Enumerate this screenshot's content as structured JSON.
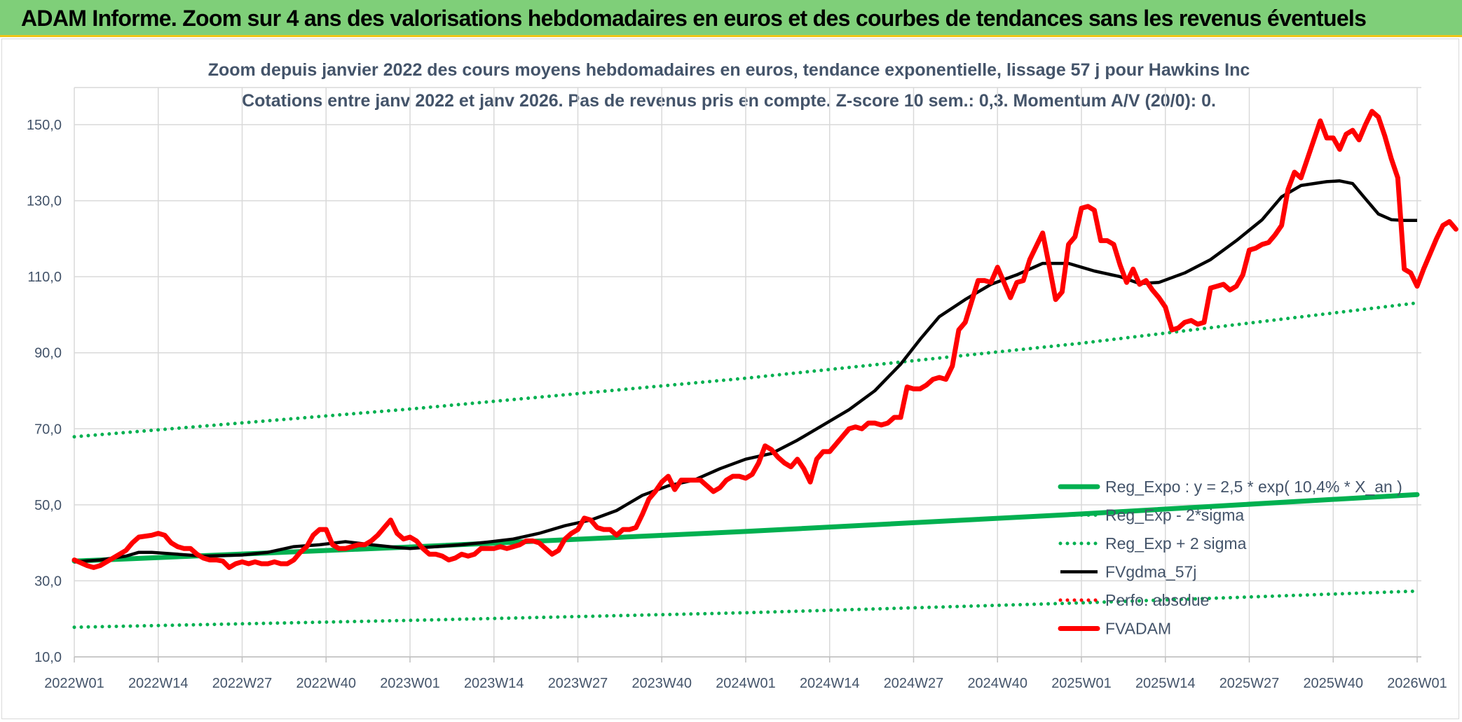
{
  "banner": {
    "title": "ADAM Informe. Zoom sur 4 ans des valorisations hebdomadaires en euros et des courbes de tendances sans les revenus éventuels"
  },
  "colors": {
    "banner_bg": "#7fcf79",
    "reg_green": "#00b050",
    "black": "#000000",
    "red": "#ff0000",
    "grid": "#d9d9d9",
    "axis_text": "#44546a"
  },
  "chart_data": {
    "type": "line",
    "title_line1": "Zoom depuis janvier 2022 des cours moyens hebdomadaires en euros, tendance exponentielle, lissage 57 j pour Hawkins Inc",
    "title_line2": "Cotations entre janv 2022 et janv 2026. Pas de revenus pris en compte. Z-score 10 sem.: 0,3. Momentum A/V (20/0): 0.",
    "ylim": [
      10,
      160
    ],
    "yticks": [
      "10,0",
      "30,0",
      "50,0",
      "70,0",
      "90,0",
      "110,0",
      "130,0",
      "150,0"
    ],
    "ytick_values": [
      10,
      30,
      50,
      70,
      90,
      110,
      130,
      150
    ],
    "x_range": [
      0,
      209
    ],
    "x_ticks": [
      "2022W01",
      "2022W14",
      "2022W27",
      "2022W40",
      "2023W01",
      "2023W14",
      "2023W27",
      "2023W40",
      "2024W01",
      "2024W14",
      "2024W27",
      "2024W40",
      "2025W01",
      "2025W14",
      "2025W27",
      "2025W40",
      "2026W01"
    ],
    "x_tick_positions": [
      0,
      13,
      26,
      39,
      52,
      65,
      78,
      91,
      104,
      117,
      130,
      143,
      156,
      169,
      182,
      195,
      208
    ],
    "grid": true,
    "legend_position": "bottom-right",
    "series": [
      {
        "name": "Reg_Expo : y = 2,5 * exp( 10,4% *  X_an )",
        "style": "solid-thick",
        "color": "#00b050",
        "points": [
          [
            0,
            35.2
          ],
          [
            52,
            38.9
          ],
          [
            104,
            43.0
          ],
          [
            156,
            47.6
          ],
          [
            208,
            52.7
          ]
        ]
      },
      {
        "name": "Reg_Exp - 2*sigma",
        "style": "dotted",
        "color": "#00b050",
        "points": [
          [
            0,
            17.8
          ],
          [
            52,
            19.6
          ],
          [
            104,
            21.6
          ],
          [
            156,
            24.2
          ],
          [
            208,
            27.3
          ]
        ]
      },
      {
        "name": "Reg_Exp + 2 sigma",
        "style": "dotted",
        "color": "#00b050",
        "points": [
          [
            0,
            67.9
          ],
          [
            52,
            75.2
          ],
          [
            104,
            83.3
          ],
          [
            156,
            92.5
          ],
          [
            208,
            103.1
          ]
        ]
      },
      {
        "name": "FVgdma_57j",
        "style": "solid",
        "color": "#000000",
        "points": [
          [
            0,
            35
          ],
          [
            4,
            35.5
          ],
          [
            8,
            36.5
          ],
          [
            10,
            37.5
          ],
          [
            12,
            37.5
          ],
          [
            16,
            37
          ],
          [
            20,
            36.5
          ],
          [
            26,
            36.8
          ],
          [
            30,
            37.5
          ],
          [
            34,
            39
          ],
          [
            38,
            39.5
          ],
          [
            42,
            40.3
          ],
          [
            46,
            39.5
          ],
          [
            50,
            38.8
          ],
          [
            52,
            38.5
          ],
          [
            56,
            39
          ],
          [
            60,
            39.5
          ],
          [
            64,
            40.2
          ],
          [
            68,
            41
          ],
          [
            72,
            42.5
          ],
          [
            76,
            44.5
          ],
          [
            80,
            46
          ],
          [
            84,
            48.5
          ],
          [
            88,
            52.5
          ],
          [
            92,
            55
          ],
          [
            96,
            56.5
          ],
          [
            100,
            59.5
          ],
          [
            104,
            62
          ],
          [
            108,
            63.5
          ],
          [
            112,
            67
          ],
          [
            116,
            71
          ],
          [
            120,
            75
          ],
          [
            124,
            80
          ],
          [
            128,
            87
          ],
          [
            131,
            93.5
          ],
          [
            134,
            99.5
          ],
          [
            138,
            104
          ],
          [
            142,
            108
          ],
          [
            146,
            110.5
          ],
          [
            150,
            113.5
          ],
          [
            154,
            113.5
          ],
          [
            158,
            111.5
          ],
          [
            162,
            110
          ],
          [
            165,
            108.2
          ],
          [
            168,
            108.5
          ],
          [
            172,
            111
          ],
          [
            176,
            114.5
          ],
          [
            180,
            119.5
          ],
          [
            184,
            125
          ],
          [
            187,
            131
          ],
          [
            190,
            134
          ],
          [
            194,
            135
          ],
          [
            196,
            135.2
          ],
          [
            198,
            134.5
          ],
          [
            200,
            130.5
          ],
          [
            202,
            126.5
          ],
          [
            204,
            125
          ],
          [
            206,
            124.8
          ],
          [
            208,
            124.8
          ]
        ]
      },
      {
        "name": "Perfo. absolue",
        "style": "dotted",
        "color": "#ff0000",
        "points": []
      },
      {
        "name": "FVADAM",
        "style": "solid-thick",
        "color": "#ff0000",
        "points": [
          [
            0,
            35.5
          ],
          [
            2,
            34
          ],
          [
            3,
            33.5
          ],
          [
            4,
            34
          ],
          [
            6,
            36
          ],
          [
            8,
            38
          ],
          [
            9,
            40
          ],
          [
            10,
            41.5
          ],
          [
            12,
            42
          ],
          [
            13,
            42.5
          ],
          [
            14,
            42
          ],
          [
            15,
            40
          ],
          [
            16,
            39
          ],
          [
            17,
            38.5
          ],
          [
            18,
            38.5
          ],
          [
            19,
            37
          ],
          [
            20,
            36
          ],
          [
            21,
            35.5
          ],
          [
            22,
            35.5
          ],
          [
            23,
            35.2
          ],
          [
            24,
            33.5
          ],
          [
            25,
            34.5
          ],
          [
            26,
            35
          ],
          [
            27,
            34.5
          ],
          [
            28,
            35
          ],
          [
            29,
            34.5
          ],
          [
            30,
            34.5
          ],
          [
            31,
            35
          ],
          [
            32,
            34.5
          ],
          [
            33,
            34.5
          ],
          [
            34,
            35.5
          ],
          [
            35,
            37.5
          ],
          [
            36,
            39
          ],
          [
            37,
            42
          ],
          [
            38,
            43.5
          ],
          [
            39,
            43.5
          ],
          [
            40,
            39.5
          ],
          [
            41,
            38.5
          ],
          [
            42,
            38.5
          ],
          [
            43,
            39
          ],
          [
            44,
            39.5
          ],
          [
            45,
            39.5
          ],
          [
            46,
            40.5
          ],
          [
            47,
            42
          ],
          [
            48,
            44
          ],
          [
            49,
            46
          ],
          [
            50,
            42.5
          ],
          [
            51,
            41
          ],
          [
            52,
            41.5
          ],
          [
            53,
            40.5
          ],
          [
            54,
            38.5
          ],
          [
            55,
            37
          ],
          [
            56,
            37
          ],
          [
            57,
            36.5
          ],
          [
            58,
            35.5
          ],
          [
            59,
            36
          ],
          [
            60,
            37
          ],
          [
            61,
            36.5
          ],
          [
            62,
            37
          ],
          [
            63,
            38.5
          ],
          [
            64,
            38.5
          ],
          [
            65,
            38.5
          ],
          [
            66,
            39
          ],
          [
            67,
            38.5
          ],
          [
            68,
            39
          ],
          [
            69,
            39.5
          ],
          [
            70,
            40.5
          ],
          [
            71,
            40.5
          ],
          [
            72,
            40
          ],
          [
            73,
            38.5
          ],
          [
            74,
            37
          ],
          [
            75,
            38
          ],
          [
            76,
            41
          ],
          [
            77,
            42.5
          ],
          [
            78,
            43.5
          ],
          [
            79,
            46.5
          ],
          [
            80,
            46
          ],
          [
            81,
            44
          ],
          [
            82,
            43.5
          ],
          [
            83,
            43.5
          ],
          [
            84,
            42
          ],
          [
            85,
            43.5
          ],
          [
            86,
            43.5
          ],
          [
            87,
            44
          ],
          [
            88,
            47.5
          ],
          [
            89,
            51.5
          ],
          [
            90,
            53.5
          ],
          [
            91,
            56
          ],
          [
            92,
            57.5
          ],
          [
            93,
            54
          ],
          [
            94,
            56.5
          ],
          [
            95,
            56.5
          ],
          [
            96,
            56.5
          ],
          [
            97,
            56.5
          ],
          [
            98,
            55
          ],
          [
            99,
            53.5
          ],
          [
            100,
            54.5
          ],
          [
            101,
            56.5
          ],
          [
            102,
            57.5
          ],
          [
            103,
            57.5
          ],
          [
            104,
            57
          ],
          [
            105,
            58
          ],
          [
            106,
            61
          ],
          [
            107,
            65.5
          ],
          [
            108,
            64.5
          ],
          [
            109,
            62.5
          ],
          [
            110,
            61
          ],
          [
            111,
            60
          ],
          [
            112,
            62
          ],
          [
            113,
            59.5
          ],
          [
            114,
            56
          ],
          [
            115,
            62
          ],
          [
            116,
            64
          ],
          [
            117,
            64
          ],
          [
            118,
            66
          ],
          [
            119,
            68
          ],
          [
            120,
            70
          ],
          [
            121,
            70.5
          ],
          [
            122,
            70
          ],
          [
            123,
            71.5
          ],
          [
            124,
            71.5
          ],
          [
            125,
            71
          ],
          [
            126,
            71.5
          ],
          [
            127,
            73
          ],
          [
            128,
            73
          ],
          [
            129,
            81
          ],
          [
            130,
            80.5
          ],
          [
            131,
            80.5
          ],
          [
            132,
            81.5
          ],
          [
            133,
            83
          ],
          [
            134,
            83.5
          ],
          [
            135,
            83
          ],
          [
            136,
            86.5
          ],
          [
            137,
            96
          ],
          [
            138,
            98
          ],
          [
            139,
            103.5
          ],
          [
            140,
            109
          ],
          [
            141,
            109
          ],
          [
            142,
            108.5
          ],
          [
            143,
            112.5
          ],
          [
            144,
            108.5
          ],
          [
            145,
            104.5
          ],
          [
            146,
            108.5
          ],
          [
            147,
            109
          ],
          [
            148,
            114.5
          ],
          [
            149,
            118
          ],
          [
            150,
            121.5
          ],
          [
            151,
            113
          ],
          [
            152,
            104
          ],
          [
            153,
            106
          ],
          [
            154,
            118.5
          ],
          [
            155,
            120.5
          ],
          [
            156,
            128
          ],
          [
            157,
            128.5
          ],
          [
            158,
            127.5
          ],
          [
            159,
            119.5
          ],
          [
            160,
            119.5
          ],
          [
            161,
            118.5
          ],
          [
            162,
            113
          ],
          [
            163,
            108.5
          ],
          [
            164,
            112
          ],
          [
            165,
            108
          ],
          [
            166,
            109
          ],
          [
            167,
            106.5
          ],
          [
            168,
            104.5
          ],
          [
            169,
            102
          ],
          [
            170,
            96
          ],
          [
            171,
            96.5
          ],
          [
            172,
            98
          ],
          [
            173,
            98.5
          ],
          [
            174,
            97.5
          ],
          [
            175,
            98
          ],
          [
            176,
            107
          ],
          [
            177,
            107.5
          ],
          [
            178,
            108
          ],
          [
            179,
            106.5
          ],
          [
            180,
            107.5
          ],
          [
            181,
            110.5
          ],
          [
            182,
            117
          ],
          [
            183,
            117.5
          ],
          [
            184,
            118.5
          ],
          [
            185,
            119
          ],
          [
            186,
            121
          ],
          [
            187,
            123.5
          ],
          [
            188,
            133
          ],
          [
            189,
            137.5
          ],
          [
            190,
            136
          ],
          [
            191,
            141
          ],
          [
            192,
            146
          ],
          [
            193,
            151
          ],
          [
            194,
            146.5
          ],
          [
            195,
            146.5
          ],
          [
            196,
            143.5
          ],
          [
            197,
            147.5
          ],
          [
            198,
            148.5
          ],
          [
            199,
            146
          ],
          [
            200,
            150
          ],
          [
            201,
            153.5
          ],
          [
            202,
            152
          ],
          [
            203,
            147
          ],
          [
            204,
            141
          ],
          [
            205,
            136
          ],
          [
            206,
            112
          ],
          [
            207,
            111
          ],
          [
            208,
            107.5
          ],
          [
            209,
            112
          ],
          [
            210,
            116
          ],
          [
            211,
            120
          ],
          [
            212,
            123.5
          ],
          [
            213,
            124.5
          ],
          [
            214,
            122.5
          ]
        ]
      }
    ]
  }
}
